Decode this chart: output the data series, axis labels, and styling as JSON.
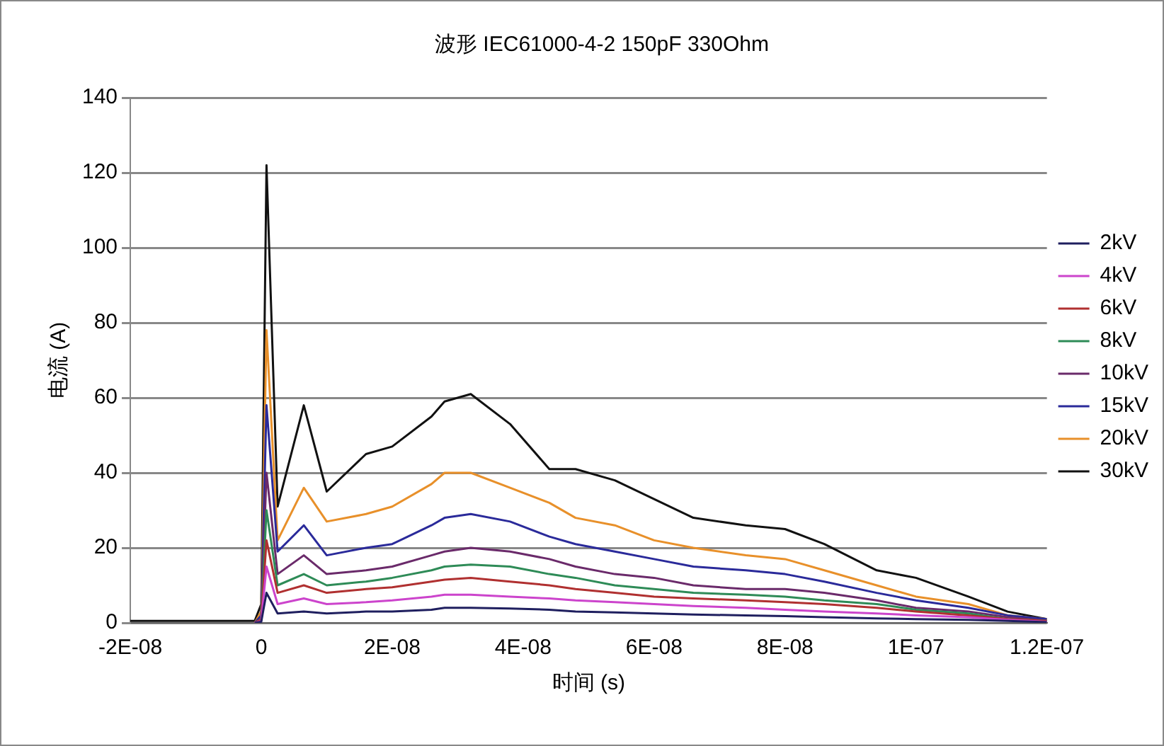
{
  "chart_data": {
    "type": "line",
    "title": "波形 IEC61000-4-2 150pF 330Ohm",
    "xlabel": "时间 (s)",
    "ylabel": "电流 (A)",
    "x": [
      -2e-08,
      -1e-08,
      -1e-09,
      0,
      8e-10,
      2.5e-09,
      6.5e-09,
      1e-08,
      1.6e-08,
      2e-08,
      2.6e-08,
      2.8e-08,
      3.2e-08,
      3.8e-08,
      4.4e-08,
      4.8e-08,
      5.4e-08,
      6e-08,
      6.6e-08,
      7.4e-08,
      8e-08,
      8.6e-08,
      9.4e-08,
      1e-07,
      1.08e-07,
      1.14e-07,
      1.2e-07
    ],
    "series": [
      {
        "name": "2kV",
        "color": "#1f1f5f",
        "values": [
          null,
          null,
          0,
          0.3,
          8,
          2.5,
          3,
          2.5,
          3,
          3,
          3.5,
          4,
          4,
          3.8,
          3.5,
          3,
          2.8,
          2.5,
          2.2,
          2,
          1.8,
          1.5,
          1.2,
          1,
          0.8,
          0.5,
          0.2
        ]
      },
      {
        "name": "4kV",
        "color": "#cc44cc",
        "values": [
          null,
          null,
          0,
          0.5,
          15,
          5,
          6.5,
          5,
          5.5,
          6,
          7,
          7.5,
          7.5,
          7,
          6.5,
          6,
          5.5,
          5,
          4.5,
          4,
          3.5,
          3,
          2.5,
          2,
          1.5,
          0.8,
          0.3
        ]
      },
      {
        "name": "6kV",
        "color": "#b03030",
        "values": [
          null,
          null,
          0,
          1,
          22,
          8,
          10,
          8,
          9,
          9.5,
          11,
          11.5,
          12,
          11,
          10,
          9,
          8,
          7,
          6.5,
          6,
          5.5,
          5,
          4,
          3,
          2,
          1,
          0.5
        ]
      },
      {
        "name": "8kV",
        "color": "#2e8b57",
        "values": [
          null,
          null,
          0,
          1,
          30,
          10,
          13,
          10,
          11,
          12,
          14,
          15,
          15.5,
          15,
          13,
          12,
          10,
          9,
          8,
          7.5,
          7,
          6,
          5,
          3.5,
          2.5,
          1,
          0.5
        ]
      },
      {
        "name": "10kV",
        "color": "#6a2a6a",
        "values": [
          null,
          null,
          0,
          1,
          40,
          13,
          18,
          13,
          14,
          15,
          18,
          19,
          20,
          19,
          17,
          15,
          13,
          12,
          10,
          9,
          9,
          8,
          6,
          4,
          3,
          1.5,
          0.5
        ]
      },
      {
        "name": "15kV",
        "color": "#2a2a9a",
        "values": [
          null,
          null,
          0,
          2,
          58,
          19,
          26,
          18,
          20,
          21,
          26,
          28,
          29,
          27,
          23,
          21,
          19,
          17,
          15,
          14,
          13,
          11,
          8,
          6,
          4,
          2,
          1
        ]
      },
      {
        "name": "20kV",
        "color": "#e8902a",
        "values": [
          null,
          null,
          0,
          3,
          78,
          22,
          36,
          27,
          29,
          31,
          37,
          40,
          40,
          36,
          32,
          28,
          26,
          22,
          20,
          18,
          17,
          14,
          10,
          7,
          5,
          2,
          1
        ]
      },
      {
        "name": "30kV",
        "color": "#111111",
        "values": [
          0.5,
          0.5,
          0.5,
          5,
          122,
          31,
          58,
          35,
          45,
          47,
          55,
          59,
          61,
          53,
          41,
          41,
          38,
          33,
          28,
          26,
          25,
          21,
          14,
          12,
          7,
          3,
          1
        ]
      }
    ],
    "xlim": [
      -2e-08,
      1.2e-07
    ],
    "xticks": [
      {
        "value": -2e-08,
        "label": "-2E-08"
      },
      {
        "value": 0,
        "label": "0"
      },
      {
        "value": 2e-08,
        "label": "2E-08"
      },
      {
        "value": 4e-08,
        "label": "4E-08"
      },
      {
        "value": 6e-08,
        "label": "6E-08"
      },
      {
        "value": 8e-08,
        "label": "8E-08"
      },
      {
        "value": 1e-07,
        "label": "1E-07"
      },
      {
        "value": 1.2e-07,
        "label": "1.2E-07"
      }
    ],
    "ylim": [
      0,
      140
    ],
    "yticks": [
      0,
      20,
      40,
      60,
      80,
      100,
      120,
      140
    ],
    "grid": "y",
    "legend": "right",
    "marker": "none",
    "line_style": "solid"
  }
}
